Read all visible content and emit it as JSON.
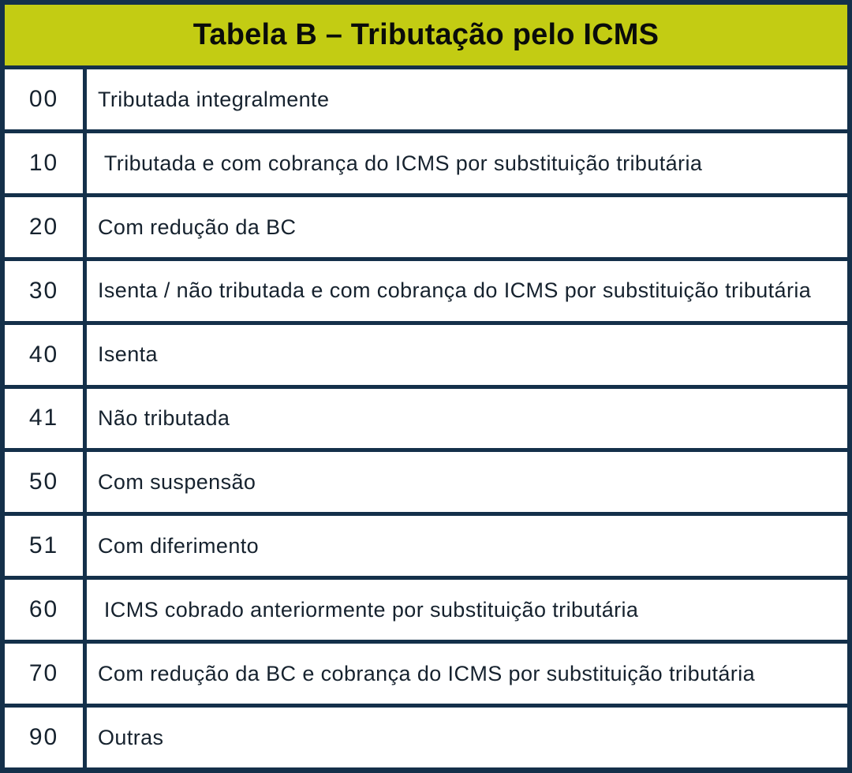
{
  "table": {
    "title": "Tabela B – Tributação pelo ICMS",
    "columns": [
      "code",
      "description"
    ],
    "rows": [
      {
        "code": "00",
        "description": "Tributada integralmente"
      },
      {
        "code": "10",
        "description": " Tributada e com cobrança do ICMS por substituição tributária"
      },
      {
        "code": "20",
        "description": "Com redução da BC"
      },
      {
        "code": "30",
        "description": "Isenta / não tributada e com cobrança do ICMS por substituição tributária"
      },
      {
        "code": "40",
        "description": "Isenta"
      },
      {
        "code": "41",
        "description": "Não tributada"
      },
      {
        "code": "50",
        "description": "Com suspensão"
      },
      {
        "code": "51",
        "description": "Com diferimento"
      },
      {
        "code": "60",
        "description": " ICMS cobrado anteriormente por substituição tributária"
      },
      {
        "code": "70",
        "description": "Com redução da BC e cobrança do ICMS por substituição tributária"
      },
      {
        "code": "90",
        "description": "Outras"
      }
    ],
    "colors": {
      "header_bg": "#c3cc13",
      "border": "#14304a",
      "title_text": "#0a0c0a",
      "body_text": "#16222e"
    }
  }
}
